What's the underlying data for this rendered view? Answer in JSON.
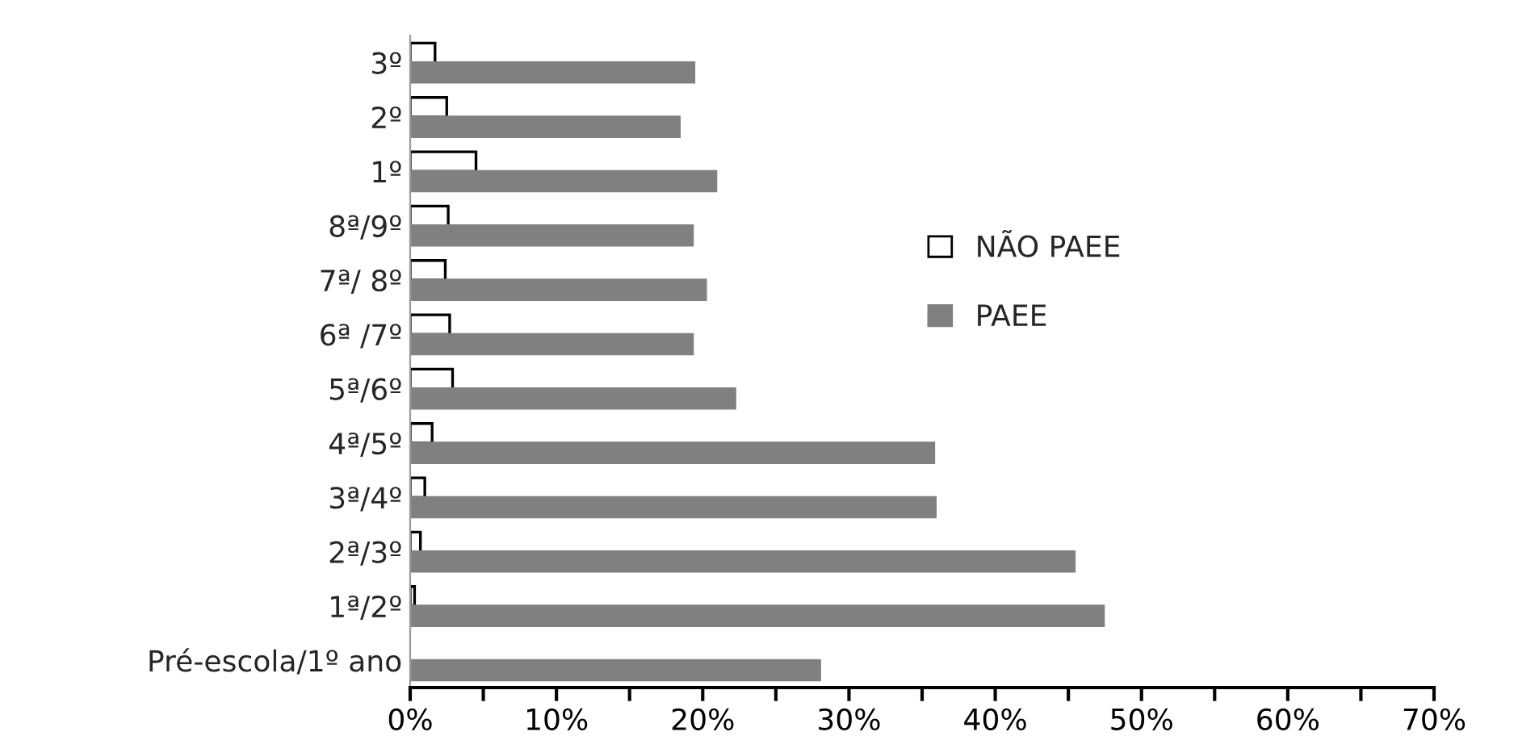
{
  "chart_data": {
    "type": "bar",
    "orientation": "horizontal",
    "categories": [
      "3º",
      "2º",
      "1º",
      "8ª/9º",
      "7ª/ 8º",
      "6ª /7º",
      "5ª/6º",
      "4ª/5º",
      "3ª/4º",
      "2ª/3º",
      "1ª/2º",
      "Pré-escola/1º ano"
    ],
    "series": [
      {
        "name": "NÃO PAEE",
        "color": "#ffffff",
        "values": [
          1.7,
          2.5,
          4.5,
          2.6,
          2.4,
          2.7,
          2.9,
          1.5,
          1.0,
          0.7,
          0.3,
          null
        ]
      },
      {
        "name": "PAEE",
        "color": "#808080",
        "values": [
          19.4,
          18.4,
          20.9,
          19.3,
          20.2,
          19.3,
          22.2,
          35.8,
          35.9,
          45.4,
          47.4,
          28.0
        ]
      }
    ],
    "xlim": [
      0,
      70
    ],
    "xticks": [
      {
        "value": 0,
        "label": "0%"
      },
      {
        "value": 5,
        "label": null
      },
      {
        "value": 10,
        "label": "10%"
      },
      {
        "value": 15,
        "label": null
      },
      {
        "value": 20,
        "label": "20%"
      },
      {
        "value": 25,
        "label": null
      },
      {
        "value": 30,
        "label": "30%"
      },
      {
        "value": 35,
        "label": null
      },
      {
        "value": 40,
        "label": "40%"
      },
      {
        "value": 45,
        "label": null
      },
      {
        "value": 50,
        "label": "50%"
      },
      {
        "value": 55,
        "label": null
      },
      {
        "value": 60,
        "label": "60%"
      },
      {
        "value": 65,
        "label": null
      },
      {
        "value": 70,
        "label": "70%"
      }
    ],
    "legend": "right",
    "grid": false
  }
}
